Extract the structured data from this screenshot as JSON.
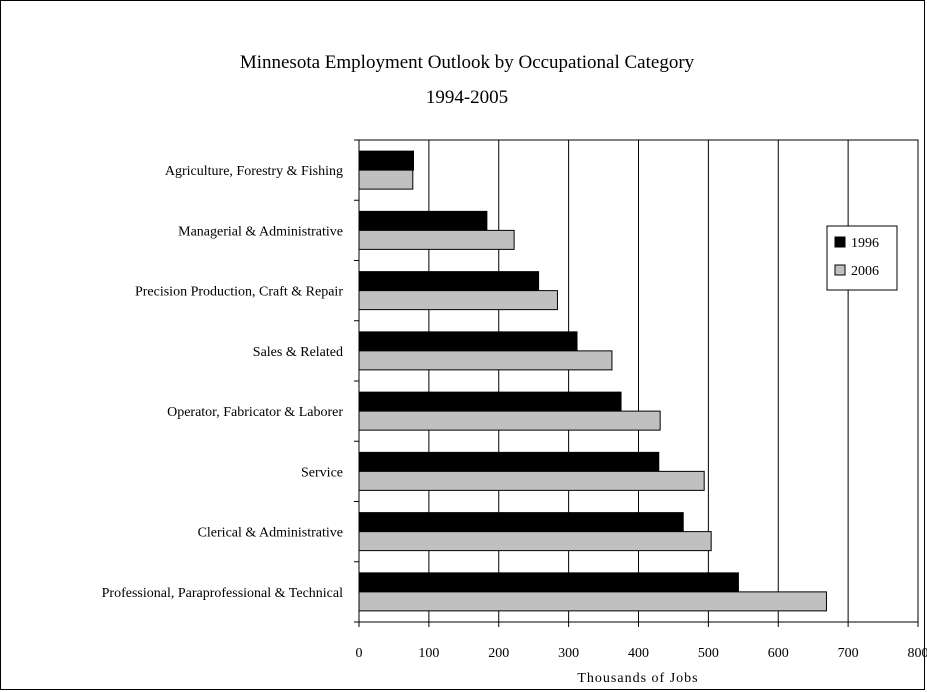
{
  "chart_data": {
    "type": "bar",
    "orientation": "horizontal",
    "title": "Minnesota Employment Outlook by Occupational Category",
    "subtitle": "1994-2005",
    "xlabel": "Thousands of Jobs",
    "ylabel": "",
    "xlim": [
      0,
      800
    ],
    "xticks": [
      0,
      100,
      200,
      300,
      400,
      500,
      600,
      700,
      800
    ],
    "grid": "vertical",
    "legend_position": "right",
    "categories": [
      "Agriculture, Forestry & Fishing",
      "Managerial & Administrative",
      "Precision Production, Craft & Repair",
      "Sales & Related",
      "Operator, Fabricator & Laborer",
      "Service",
      "Clerical & Administrative",
      "Professional, Paraprofessional & Technical"
    ],
    "series": [
      {
        "name": "1996",
        "color": "#000000",
        "values": [
          78,
          183,
          257,
          312,
          375,
          429,
          464,
          543
        ]
      },
      {
        "name": "2006",
        "color": "#c0c0c0",
        "values": [
          77,
          222,
          284,
          362,
          431,
          494,
          504,
          669
        ]
      }
    ]
  }
}
